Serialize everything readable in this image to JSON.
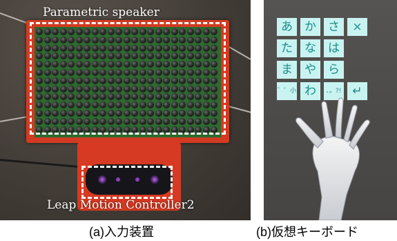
{
  "panel_a": {
    "speaker_label": "Parametric speaker",
    "leap_label": "Leap Motion Controller2",
    "caption": "(a)入力装置",
    "colors": {
      "board": "#d23b22",
      "pcb": "#2c6a2f",
      "dash": "#ffffff"
    }
  },
  "panel_b": {
    "caption": "(b)仮想キーボード",
    "keyboard": {
      "rows": [
        [
          "あ",
          "か",
          "さ",
          "×"
        ],
        [
          "た",
          "な",
          "は"
        ],
        [
          "ま",
          "や",
          "ら"
        ],
        [
          "゛゜小",
          "わ",
          "、。?!",
          "↵"
        ]
      ],
      "key_color": "#c9f3f1",
      "text_color": "#1a8c8a"
    }
  }
}
